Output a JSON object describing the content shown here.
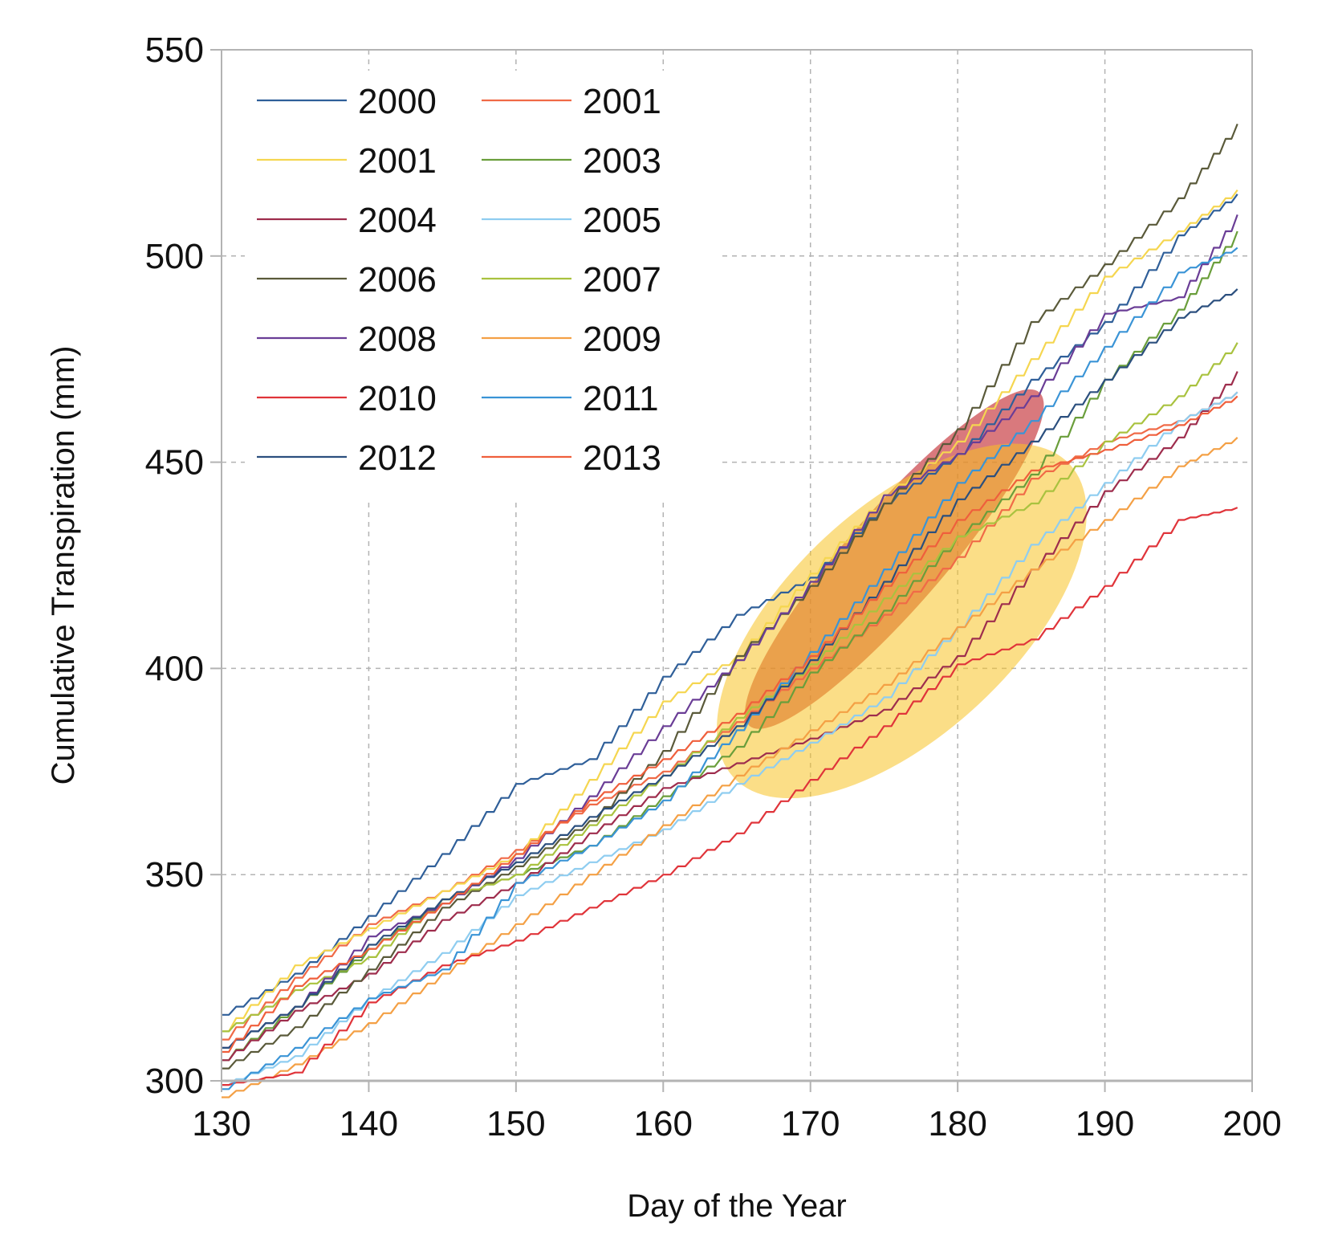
{
  "chart_data": {
    "type": "line",
    "title": "",
    "xlabel": "Day of the Year",
    "ylabel": "Cumulative Transpiration (mm)",
    "xlim": [
      130,
      200
    ],
    "ylim": [
      300,
      550
    ],
    "x_ticks": [
      130,
      140,
      150,
      160,
      170,
      180,
      190,
      200
    ],
    "y_ticks": [
      300,
      350,
      400,
      450,
      500,
      550
    ],
    "grid": true,
    "legend_position": "top-left",
    "legend_columns": 2,
    "series": [
      {
        "name": "2000",
        "color": "#2f5f99",
        "x": [
          130,
          135,
          140,
          145,
          150,
          155,
          160,
          165,
          170,
          175,
          180,
          185,
          190,
          195,
          199
        ],
        "y": [
          316,
          326,
          340,
          355,
          372,
          378,
          398,
          413,
          422,
          440,
          452,
          470,
          484,
          505,
          515
        ]
      },
      {
        "name": "2001",
        "color": "#f06a47",
        "x": [
          130,
          135,
          140,
          145,
          150,
          155,
          160,
          165,
          170,
          175,
          180,
          185,
          190,
          195,
          199
        ],
        "y": [
          310,
          325,
          338,
          346,
          356,
          367,
          375,
          387,
          400,
          413,
          427,
          446,
          455,
          460,
          467
        ]
      },
      {
        "name": "2001",
        "color": "#f5d650",
        "x": [
          130,
          135,
          140,
          145,
          150,
          155,
          160,
          165,
          170,
          175,
          180,
          185,
          190,
          195,
          199
        ],
        "y": [
          312,
          328,
          337,
          346,
          355,
          373,
          392,
          403,
          423,
          442,
          455,
          475,
          495,
          506,
          516
        ]
      },
      {
        "name": "2003",
        "color": "#6a9e3b",
        "x": [
          130,
          135,
          140,
          145,
          150,
          155,
          160,
          165,
          170,
          175,
          180,
          185,
          190,
          195,
          199
        ],
        "y": [
          305,
          318,
          332,
          344,
          350,
          357,
          369,
          381,
          399,
          414,
          432,
          447,
          470,
          487,
          506
        ]
      },
      {
        "name": "2004",
        "color": "#9e2d4d",
        "x": [
          130,
          135,
          140,
          145,
          150,
          155,
          160,
          165,
          170,
          175,
          180,
          185,
          190,
          195,
          199
        ],
        "y": [
          305,
          317,
          326,
          339,
          348,
          360,
          371,
          377,
          383,
          390,
          403,
          424,
          443,
          456,
          472
        ]
      },
      {
        "name": "2005",
        "color": "#8fcdf0",
        "x": [
          130,
          135,
          140,
          145,
          150,
          155,
          160,
          165,
          170,
          175,
          180,
          185,
          190,
          195,
          199
        ],
        "y": [
          299,
          306,
          320,
          331,
          345,
          353,
          361,
          372,
          382,
          393,
          410,
          430,
          445,
          460,
          467
        ]
      },
      {
        "name": "2006",
        "color": "#5a5a3a",
        "x": [
          130,
          135,
          140,
          145,
          150,
          155,
          160,
          165,
          170,
          175,
          180,
          185,
          190,
          195,
          199
        ],
        "y": [
          303,
          313,
          327,
          342,
          352,
          363,
          380,
          403,
          420,
          440,
          458,
          484,
          498,
          514,
          532
        ]
      },
      {
        "name": "2007",
        "color": "#a9c23f",
        "x": [
          130,
          135,
          140,
          145,
          150,
          155,
          160,
          165,
          170,
          175,
          180,
          185,
          190,
          195,
          199
        ],
        "y": [
          312,
          322,
          330,
          344,
          350,
          362,
          374,
          388,
          401,
          417,
          432,
          440,
          455,
          466,
          479
        ]
      },
      {
        "name": "2008",
        "color": "#6a3d96",
        "x": [
          130,
          135,
          140,
          145,
          150,
          155,
          160,
          165,
          170,
          175,
          180,
          185,
          190,
          195,
          199
        ],
        "y": [
          308,
          318,
          335,
          343,
          354,
          369,
          386,
          402,
          421,
          442,
          452,
          466,
          486,
          490,
          510
        ]
      },
      {
        "name": "2009",
        "color": "#f4a045",
        "x": [
          130,
          135,
          140,
          145,
          150,
          155,
          160,
          165,
          170,
          175,
          180,
          185,
          190,
          195,
          199
        ],
        "y": [
          296,
          304,
          314,
          326,
          338,
          350,
          362,
          374,
          385,
          396,
          410,
          424,
          436,
          449,
          456
        ]
      },
      {
        "name": "2010",
        "color": "#e0343a",
        "x": [
          130,
          135,
          140,
          145,
          150,
          155,
          160,
          165,
          170,
          175,
          180,
          185,
          190,
          195,
          199
        ],
        "y": [
          299,
          302,
          319,
          328,
          334,
          342,
          350,
          360,
          373,
          386,
          401,
          407,
          420,
          436,
          439
        ]
      },
      {
        "name": "2011",
        "color": "#3a94d6",
        "x": [
          130,
          135,
          140,
          145,
          150,
          155,
          160,
          165,
          170,
          175,
          180,
          185,
          190,
          195,
          199
        ],
        "y": [
          298,
          308,
          320,
          327,
          348,
          357,
          368,
          385,
          404,
          424,
          445,
          460,
          478,
          496,
          502
        ]
      },
      {
        "name": "2012",
        "color": "#2b4f7e",
        "x": [
          130,
          135,
          140,
          145,
          150,
          155,
          160,
          165,
          170,
          175,
          180,
          185,
          190,
          195,
          199
        ],
        "y": [
          308,
          318,
          333,
          344,
          353,
          364,
          374,
          386,
          402,
          421,
          441,
          455,
          470,
          485,
          492
        ]
      },
      {
        "name": "2013",
        "color": "#ef5f3c",
        "x": [
          130,
          135,
          140,
          145,
          150,
          155,
          160,
          165,
          170,
          175,
          180,
          185,
          190,
          195,
          199
        ],
        "y": [
          307,
          323,
          332,
          343,
          355,
          368,
          378,
          389,
          403,
          420,
          436,
          448,
          453,
          459,
          466
        ]
      }
    ],
    "annotations": [
      {
        "shape": "ellipse",
        "color": "#c1272d",
        "opacity": 0.62,
        "cx": 175.7,
        "cy": 426.5,
        "rx": 15.0,
        "ry": 3.3,
        "rotation_deg": -49
      },
      {
        "shape": "ellipse",
        "color": "#f7c325",
        "opacity": 0.55,
        "cx": 176.2,
        "cy": 411.5,
        "rx": 15.6,
        "ry": 7.7,
        "rotation_deg": -43
      }
    ]
  }
}
